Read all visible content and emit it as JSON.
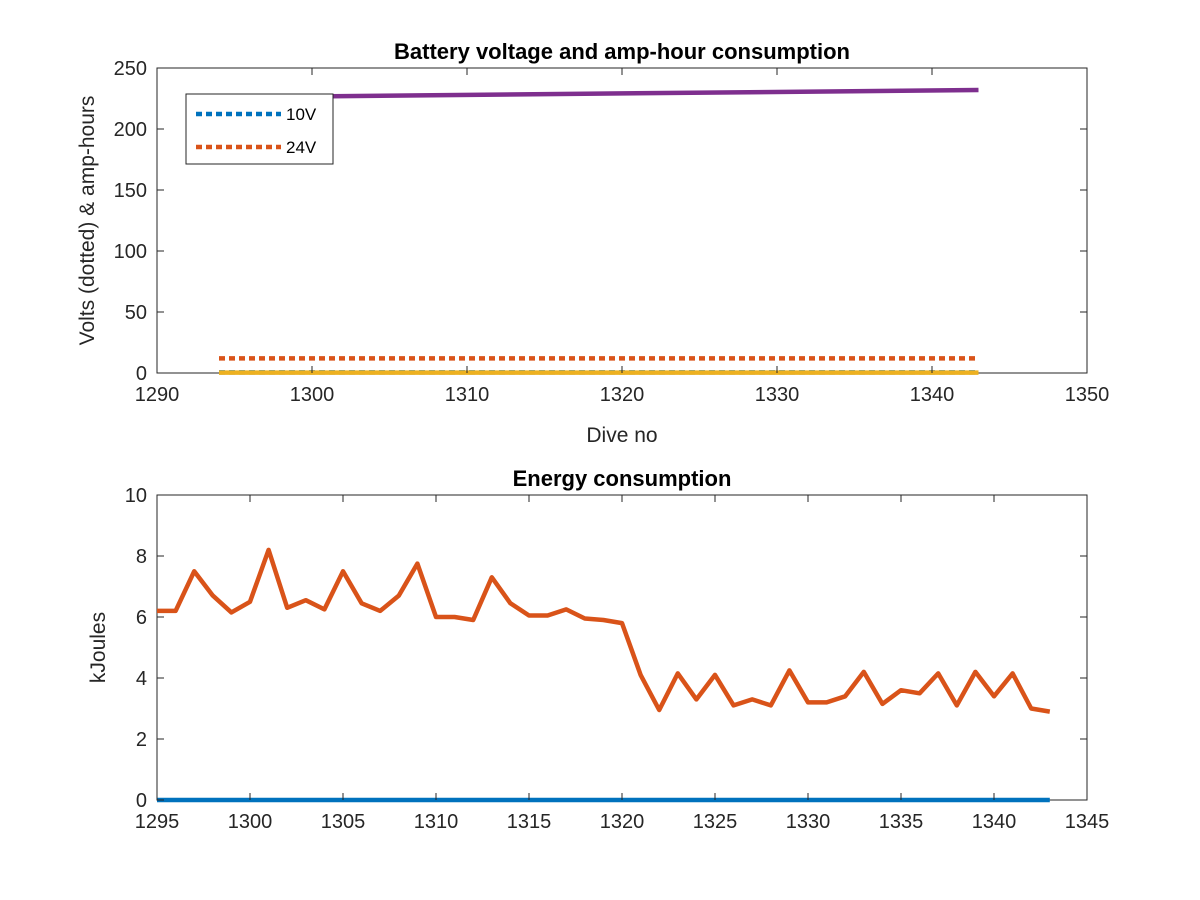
{
  "chart_data": [
    {
      "type": "line",
      "title": "Battery voltage and amp-hour consumption",
      "xlabel": "Dive no",
      "ylabel": "Volts (dotted) & amp-hours",
      "xlim": [
        1290,
        1350
      ],
      "ylim": [
        0,
        250
      ],
      "xticks": [
        "1290",
        "1300",
        "1310",
        "1320",
        "1330",
        "1340",
        "1350"
      ],
      "yticks": [
        "0",
        "50",
        "100",
        "150",
        "200",
        "250"
      ],
      "grid": false,
      "legend_position": "top-left",
      "series": [
        {
          "name": "10V",
          "color": "#0072BD",
          "style": "dotted",
          "in_legend": true,
          "x": [
            1294,
            1343
          ],
          "y": [
            0.5,
            0.5
          ]
        },
        {
          "name": "24V",
          "color": "#D95319",
          "style": "dotted",
          "in_legend": true,
          "x": [
            1294,
            1343
          ],
          "y": [
            12,
            12
          ]
        },
        {
          "color": "#EDB120",
          "style": "solid",
          "in_legend": false,
          "x": [
            1294,
            1343
          ],
          "y": [
            0.3,
            0.3
          ]
        },
        {
          "color": "#7E2F8E",
          "style": "solid",
          "in_legend": false,
          "x": [
            1294,
            1343
          ],
          "y": [
            226,
            232
          ]
        }
      ]
    },
    {
      "type": "line",
      "title": "Energy consumption",
      "xlabel": "",
      "ylabel": "kJoules",
      "xlim": [
        1295,
        1345
      ],
      "ylim": [
        0,
        10
      ],
      "xticks": [
        "1295",
        "1300",
        "1305",
        "1310",
        "1315",
        "1320",
        "1325",
        "1330",
        "1335",
        "1340",
        "1345"
      ],
      "yticks": [
        "0",
        "2",
        "4",
        "6",
        "8",
        "10"
      ],
      "grid": false,
      "series": [
        {
          "color": "#0072BD",
          "style": "solid",
          "x": [
            1295,
            1343
          ],
          "y": [
            0,
            0
          ]
        },
        {
          "color": "#D95319",
          "style": "solid",
          "x": [
            1295,
            1296,
            1297,
            1298,
            1299,
            1300,
            1301,
            1302,
            1303,
            1304,
            1305,
            1306,
            1307,
            1308,
            1309,
            1310,
            1311,
            1312,
            1313,
            1314,
            1315,
            1316,
            1317,
            1318,
            1319,
            1320,
            1321,
            1322,
            1323,
            1324,
            1325,
            1326,
            1327,
            1328,
            1329,
            1330,
            1331,
            1332,
            1333,
            1334,
            1335,
            1336,
            1337,
            1338,
            1339,
            1340,
            1341,
            1342,
            1343
          ],
          "y": [
            6.2,
            6.2,
            7.5,
            6.7,
            6.15,
            6.5,
            8.2,
            6.3,
            6.55,
            6.25,
            7.5,
            6.45,
            6.2,
            6.7,
            7.75,
            6.0,
            6.0,
            5.9,
            7.3,
            6.45,
            6.05,
            6.05,
            6.25,
            5.95,
            5.9,
            5.8,
            4.1,
            2.95,
            4.15,
            3.3,
            4.1,
            3.1,
            3.3,
            3.1,
            4.25,
            3.2,
            3.2,
            3.4,
            4.2,
            3.15,
            3.6,
            3.5,
            4.15,
            3.1,
            4.2,
            3.4,
            4.15,
            3.0,
            2.9
          ]
        }
      ]
    }
  ]
}
